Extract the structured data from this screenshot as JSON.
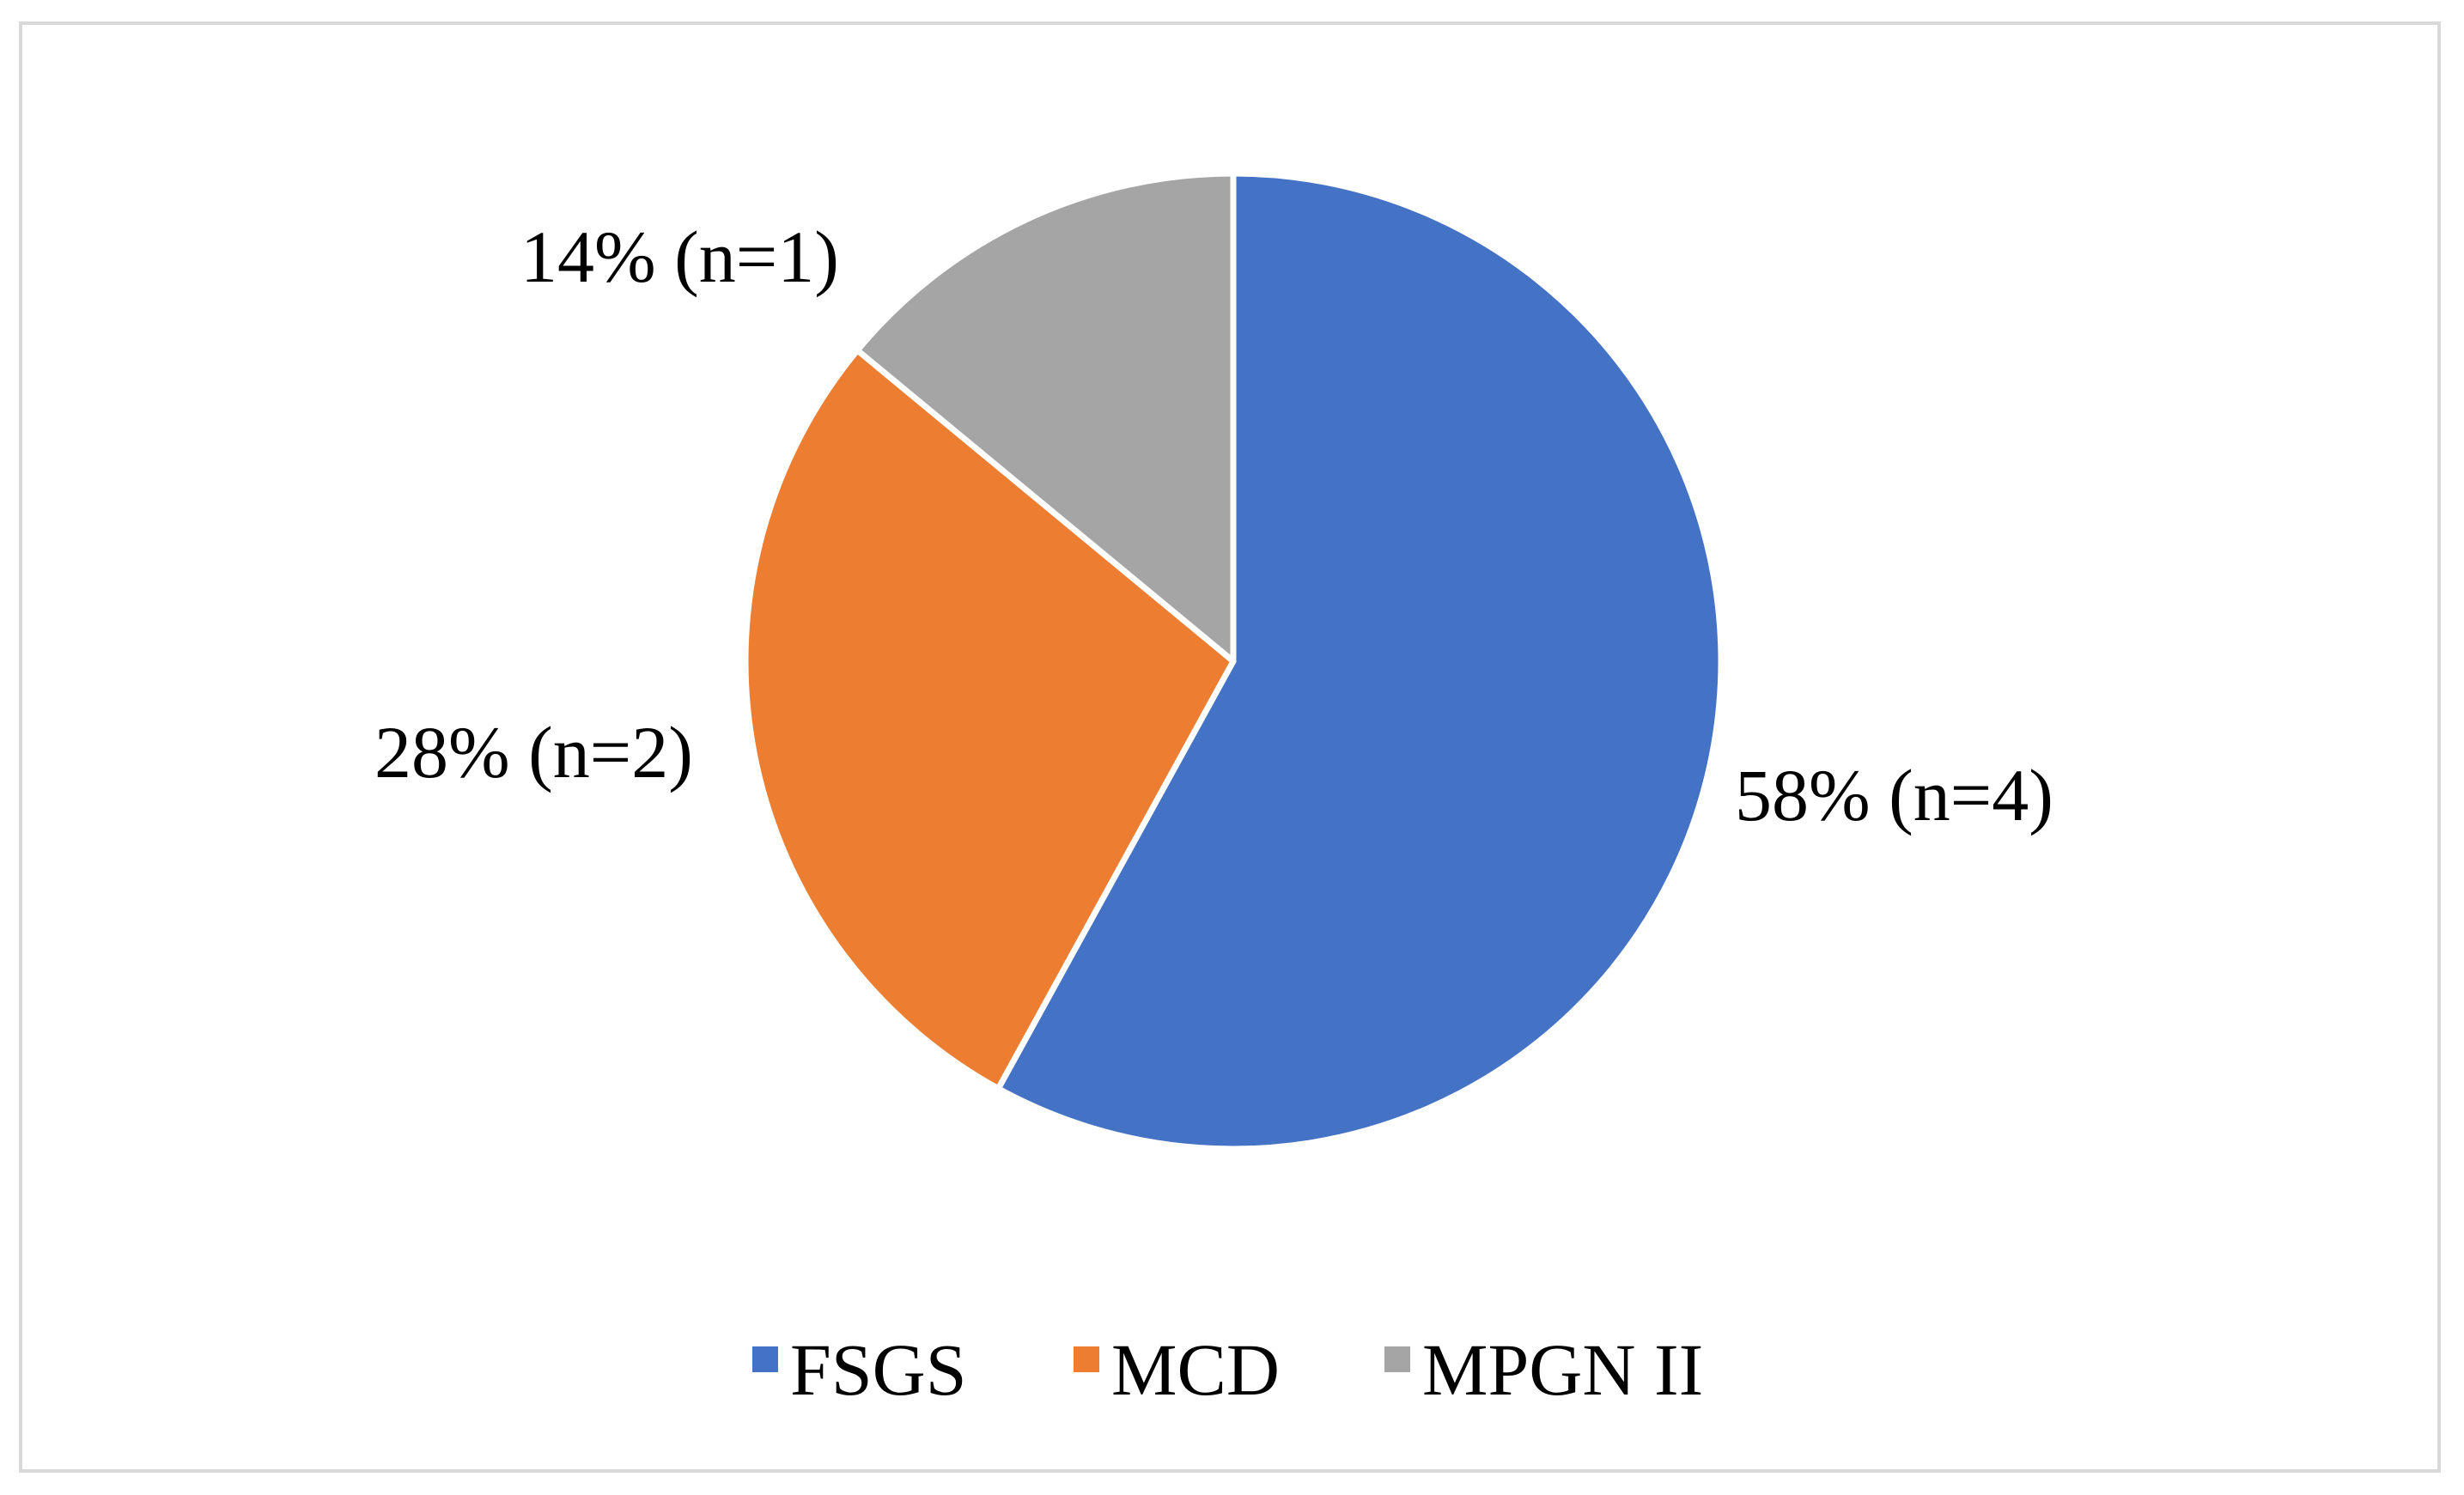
{
  "chart_data": {
    "type": "pie",
    "title": "",
    "slices": [
      {
        "label": "FSGS",
        "value": 58,
        "data_label": "58% (n=4)",
        "color": "#4472C4"
      },
      {
        "label": "MCD",
        "value": 28,
        "data_label": "28% (n=2)",
        "color": "#ED7D31"
      },
      {
        "label": "MPGN II",
        "value": 14,
        "data_label": "14% (n=1)",
        "color": "#A5A5A5"
      }
    ],
    "start_angle": "12 o'clock",
    "direction": "clockwise",
    "legend": {
      "position": "bottom",
      "items": [
        "FSGS",
        "MCD",
        "MPGN II"
      ]
    }
  }
}
